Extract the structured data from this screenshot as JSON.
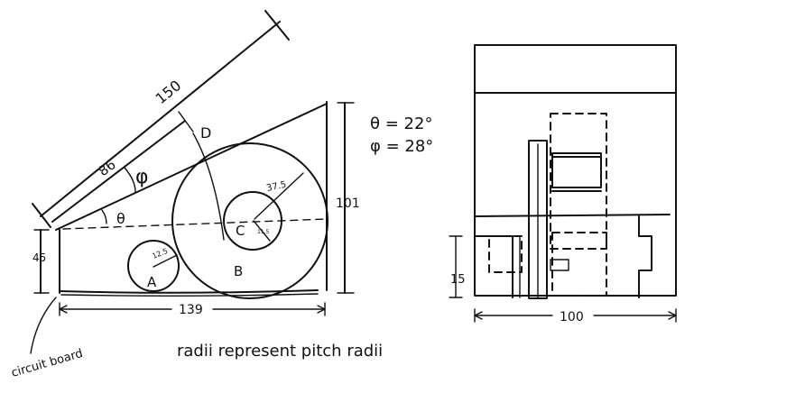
{
  "side_view": {
    "dim_150": "150",
    "dim_86": "86",
    "phi_symbol": "φ",
    "theta_symbol": "θ",
    "label_D": "D",
    "label_C": "C",
    "label_B": "B",
    "label_A": "A",
    "radius_A": "12.5",
    "radius_B": "37.5",
    "radius_C": "11.5",
    "dim_101": "101",
    "dim_45": "45",
    "dim_139": "139",
    "circuit_board": "circuit board"
  },
  "angles": {
    "theta_eq": "θ = 22°",
    "phi_eq": "φ = 28°"
  },
  "note": "radii represent pitch radii",
  "end_view": {
    "dim_15": "15",
    "dim_100": "100"
  }
}
